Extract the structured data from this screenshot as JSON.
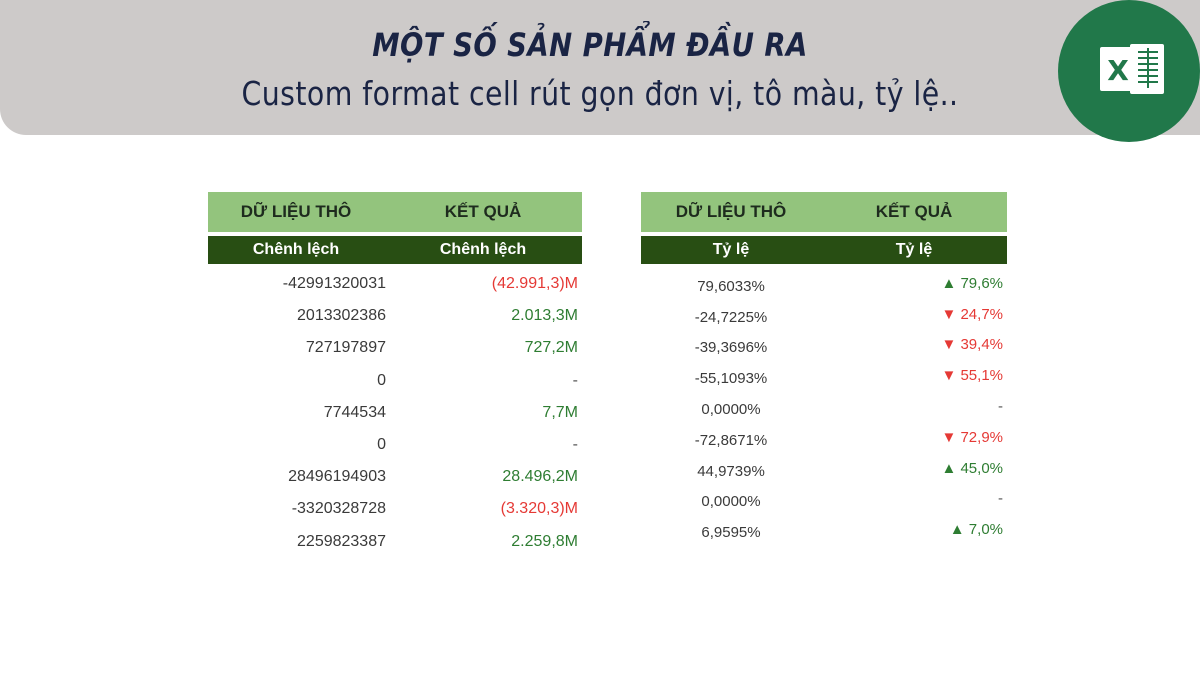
{
  "banner": {
    "title": "MỘT SỐ SẢN PHẨM ĐẦU RA",
    "subtitle": "Custom format cell rút gọn đơn vị, tô màu, tỷ lệ..",
    "logo_icon": "excel-icon",
    "logo_letter": "X"
  },
  "colors": {
    "header_light": "#93c47d",
    "header_dark": "#284e13",
    "negative": "#e53935",
    "positive": "#2e7d32",
    "excel_green": "#21784a"
  },
  "table_amount": {
    "header": [
      "DỮ LIỆU THÔ",
      "KẾT QUẢ"
    ],
    "subheader": [
      "Chênh lệch",
      "Chênh lệch"
    ],
    "rows": [
      {
        "raw": "-42991320031",
        "result": "(42.991,3)M",
        "tone": "red"
      },
      {
        "raw": "2013302386",
        "result": "2.013,3M",
        "tone": "green"
      },
      {
        "raw": "727197897",
        "result": "727,2M",
        "tone": "green"
      },
      {
        "raw": "0",
        "result": "-",
        "tone": "gray"
      },
      {
        "raw": "7744534",
        "result": "7,7M",
        "tone": "green"
      },
      {
        "raw": "0",
        "result": "-",
        "tone": "gray"
      },
      {
        "raw": "28496194903",
        "result": "28.496,2M",
        "tone": "green"
      },
      {
        "raw": "-3320328728",
        "result": "(3.320,3)M",
        "tone": "red"
      },
      {
        "raw": "2259823387",
        "result": "2.259,8M",
        "tone": "green"
      }
    ]
  },
  "table_ratio": {
    "header": [
      "DỮ LIỆU THÔ",
      "KẾT QUẢ"
    ],
    "subheader": [
      "Tỷ lệ",
      "Tỷ lệ"
    ],
    "rows": [
      {
        "raw": "79,6033%",
        "result": "▲ 79,6%",
        "tone": "green"
      },
      {
        "raw": "-24,7225%",
        "result": "▼ 24,7%",
        "tone": "red"
      },
      {
        "raw": "-39,3696%",
        "result": "▼ 39,4%",
        "tone": "red"
      },
      {
        "raw": "-55,1093%",
        "result": "▼ 55,1%",
        "tone": "red"
      },
      {
        "raw": "0,0000%",
        "result": "-",
        "tone": "gray"
      },
      {
        "raw": "-72,8671%",
        "result": "▼ 72,9%",
        "tone": "red"
      },
      {
        "raw": "44,9739%",
        "result": "▲ 45,0%",
        "tone": "green"
      },
      {
        "raw": "0,0000%",
        "result": "-",
        "tone": "gray"
      },
      {
        "raw": "6,9595%",
        "result": "▲ 7,0%",
        "tone": "green"
      }
    ]
  }
}
